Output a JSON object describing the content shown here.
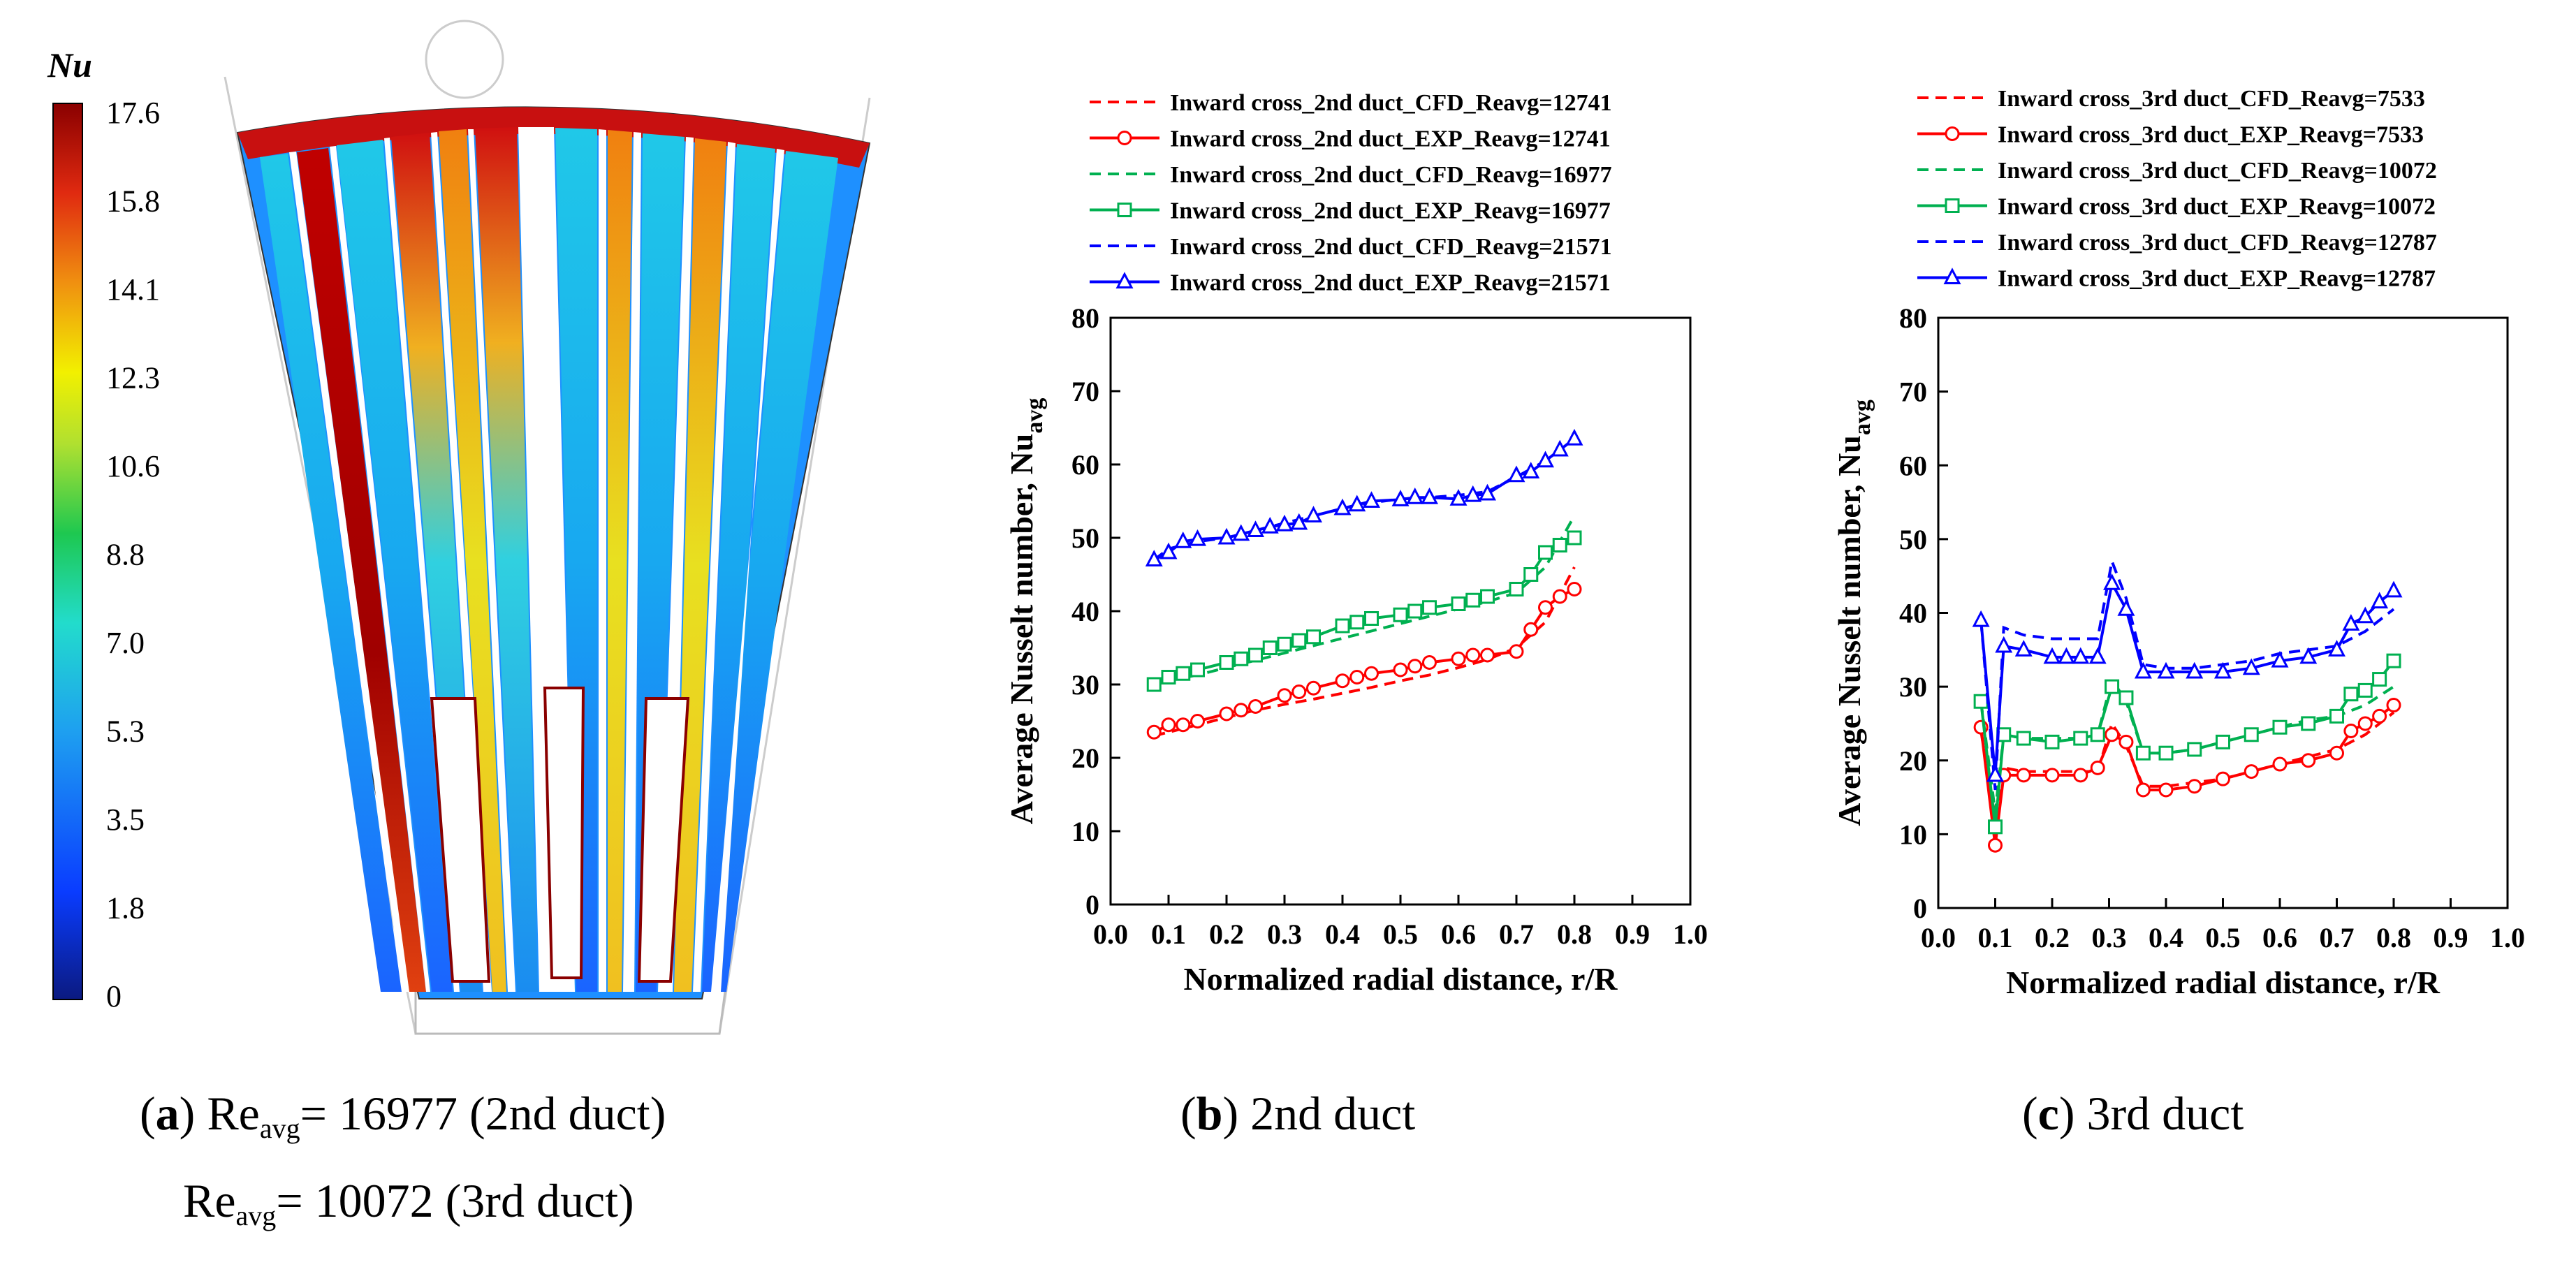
{
  "contour": {
    "colorbar_title": "Nu",
    "ticks": [
      "17.6",
      "15.8",
      "14.1",
      "12.3",
      "10.6",
      "8.8",
      "7.0",
      "5.3",
      "3.5",
      "1.8",
      "0"
    ]
  },
  "captions": {
    "a": {
      "letter": "a",
      "re_text": "Re",
      "sub": "avg",
      "line1_rest": "= 16977 (2nd duct)",
      "line2_rest": "= 10072 (3rd duct)"
    },
    "b": {
      "letter": "b",
      "text": "2nd duct"
    },
    "c": {
      "letter": "c",
      "text": "3rd duct"
    }
  },
  "chart_data": [
    {
      "type": "line",
      "title": "2nd duct",
      "xlabel": "Normalized radial distance, r/R",
      "ylabel": "Average Nusselt number, Nu",
      "ylabel_sub": "avg",
      "xlim": [
        0.0,
        1.0
      ],
      "ylim": [
        0,
        80
      ],
      "xticks": [
        "0.0",
        "0.1",
        "0.2",
        "0.3",
        "0.4",
        "0.5",
        "0.6",
        "0.7",
        "0.8",
        "0.9",
        "1.0"
      ],
      "yticks": [
        "0",
        "10",
        "20",
        "30",
        "40",
        "50",
        "60",
        "70",
        "80"
      ],
      "series": [
        {
          "name": "Inward cross_2nd duct_CFD_Reavg=12741",
          "color": "#ff0000",
          "dash": true,
          "marker": "none",
          "x": [
            0.075,
            0.1,
            0.15,
            0.2,
            0.25,
            0.3,
            0.35,
            0.4,
            0.45,
            0.5,
            0.55,
            0.6,
            0.65,
            0.7,
            0.75,
            0.8
          ],
          "y": [
            23.0,
            23.5,
            24.5,
            25.5,
            26.5,
            27.3,
            28.0,
            28.8,
            29.6,
            30.5,
            31.3,
            32.3,
            33.4,
            35.0,
            38.5,
            46.0
          ]
        },
        {
          "name": "Inward cross_2nd duct_EXP_Reavg=12741",
          "color": "#ff0000",
          "dash": false,
          "marker": "circle",
          "x": [
            0.075,
            0.1,
            0.125,
            0.15,
            0.2,
            0.225,
            0.25,
            0.3,
            0.325,
            0.35,
            0.4,
            0.425,
            0.45,
            0.5,
            0.525,
            0.55,
            0.6,
            0.625,
            0.65,
            0.7,
            0.725,
            0.75,
            0.775,
            0.8
          ],
          "y": [
            23.5,
            24.5,
            24.5,
            25.0,
            26.0,
            26.5,
            27.0,
            28.5,
            29.0,
            29.5,
            30.5,
            31.0,
            31.5,
            32.0,
            32.5,
            33.0,
            33.5,
            34.0,
            34.0,
            34.5,
            37.5,
            40.5,
            42.0,
            43.0
          ]
        },
        {
          "name": "Inward cross_2nd duct_CFD_Reavg=16977",
          "color": "#00b050",
          "dash": true,
          "marker": "none",
          "x": [
            0.075,
            0.1,
            0.15,
            0.2,
            0.25,
            0.3,
            0.35,
            0.4,
            0.45,
            0.5,
            0.55,
            0.6,
            0.65,
            0.7,
            0.75,
            0.8
          ],
          "y": [
            30.0,
            30.5,
            31.3,
            32.3,
            33.3,
            34.3,
            35.3,
            36.3,
            37.3,
            38.3,
            39.3,
            40.3,
            41.3,
            42.5,
            46.0,
            53.0
          ]
        },
        {
          "name": "Inward cross_2nd duct_EXP_Reavg=16977",
          "color": "#00b050",
          "dash": false,
          "marker": "square",
          "x": [
            0.075,
            0.1,
            0.125,
            0.15,
            0.2,
            0.225,
            0.25,
            0.275,
            0.3,
            0.325,
            0.35,
            0.4,
            0.425,
            0.45,
            0.5,
            0.525,
            0.55,
            0.6,
            0.625,
            0.65,
            0.7,
            0.725,
            0.75,
            0.775,
            0.8
          ],
          "y": [
            30.0,
            31.0,
            31.5,
            32.0,
            33.0,
            33.5,
            34.0,
            35.0,
            35.5,
            36.0,
            36.5,
            38.0,
            38.5,
            39.0,
            39.5,
            40.0,
            40.5,
            41.0,
            41.5,
            42.0,
            43.0,
            45.0,
            48.0,
            49.0,
            50.0
          ]
        },
        {
          "name": "Inward cross_2nd duct_CFD_Reavg=21571",
          "color": "#0000ff",
          "dash": true,
          "marker": "none",
          "x": [
            0.075,
            0.1,
            0.15,
            0.2,
            0.25,
            0.3,
            0.35,
            0.4,
            0.45,
            0.5,
            0.55,
            0.6,
            0.65,
            0.7,
            0.75,
            0.8
          ],
          "y": [
            47.0,
            48.5,
            49.5,
            50.0,
            51.0,
            52.0,
            53.0,
            54.0,
            54.8,
            55.3,
            55.5,
            55.8,
            56.3,
            58.3,
            60.5,
            63.5
          ]
        },
        {
          "name": "Inward cross_2nd duct_EXP_Reavg=21571",
          "color": "#0000ff",
          "dash": false,
          "marker": "triangle",
          "x": [
            0.075,
            0.1,
            0.125,
            0.15,
            0.2,
            0.225,
            0.25,
            0.275,
            0.3,
            0.325,
            0.35,
            0.4,
            0.425,
            0.45,
            0.5,
            0.525,
            0.55,
            0.6,
            0.625,
            0.65,
            0.7,
            0.725,
            0.75,
            0.775,
            0.8
          ],
          "y": [
            47.0,
            48.0,
            49.5,
            49.8,
            50.0,
            50.5,
            51.0,
            51.5,
            51.8,
            52.0,
            53.0,
            54.0,
            54.5,
            55.0,
            55.2,
            55.5,
            55.5,
            55.3,
            55.8,
            56.0,
            58.5,
            59.0,
            60.5,
            62.0,
            63.5
          ]
        }
      ]
    },
    {
      "type": "line",
      "title": "3rd duct",
      "xlabel": "Normalized radial distance, r/R",
      "ylabel": "Average Nusselt number, Nu",
      "ylabel_sub": "avg",
      "xlim": [
        0.0,
        1.0
      ],
      "ylim": [
        0,
        80
      ],
      "xticks": [
        "0.0",
        "0.1",
        "0.2",
        "0.3",
        "0.4",
        "0.5",
        "0.6",
        "0.7",
        "0.8",
        "0.9",
        "1.0"
      ],
      "yticks": [
        "0",
        "10",
        "20",
        "30",
        "40",
        "50",
        "60",
        "70",
        "80"
      ],
      "series": [
        {
          "name": "Inward cross_3rd duct_CFD_Reavg=7533",
          "color": "#ff0000",
          "dash": true,
          "marker": "none",
          "x": [
            0.075,
            0.1,
            0.115,
            0.15,
            0.2,
            0.25,
            0.28,
            0.305,
            0.33,
            0.36,
            0.4,
            0.45,
            0.5,
            0.55,
            0.6,
            0.65,
            0.7,
            0.75,
            0.8
          ],
          "y": [
            24.0,
            12.0,
            19.0,
            18.5,
            18.5,
            18.5,
            18.5,
            25.0,
            22.0,
            16.5,
            16.5,
            17.0,
            17.5,
            18.5,
            19.5,
            20.5,
            21.5,
            23.5,
            26.5
          ]
        },
        {
          "name": "Inward cross_3rd duct_EXP_Reavg=7533",
          "color": "#ff0000",
          "dash": false,
          "marker": "circle",
          "x": [
            0.075,
            0.1,
            0.115,
            0.15,
            0.2,
            0.25,
            0.28,
            0.305,
            0.33,
            0.36,
            0.4,
            0.45,
            0.5,
            0.55,
            0.6,
            0.65,
            0.7,
            0.725,
            0.75,
            0.775,
            0.8
          ],
          "y": [
            24.5,
            8.5,
            18.0,
            18.0,
            18.0,
            18.0,
            19.0,
            23.5,
            22.5,
            16.0,
            16.0,
            16.5,
            17.5,
            18.5,
            19.5,
            20.0,
            21.0,
            24.0,
            25.0,
            26.0,
            27.5
          ]
        },
        {
          "name": "Inward cross_3rd duct_CFD_Reavg=10072",
          "color": "#00b050",
          "dash": true,
          "marker": "none",
          "x": [
            0.075,
            0.1,
            0.115,
            0.15,
            0.2,
            0.25,
            0.28,
            0.305,
            0.33,
            0.36,
            0.4,
            0.45,
            0.5,
            0.55,
            0.6,
            0.65,
            0.7,
            0.75,
            0.8
          ],
          "y": [
            28.0,
            13.0,
            23.5,
            23.0,
            23.0,
            23.0,
            23.5,
            31.0,
            28.0,
            21.0,
            21.0,
            21.5,
            22.5,
            23.5,
            24.5,
            25.5,
            26.0,
            27.5,
            30.0
          ]
        },
        {
          "name": "Inward cross_3rd duct_EXP_Reavg=10072",
          "color": "#00b050",
          "dash": false,
          "marker": "square",
          "x": [
            0.075,
            0.1,
            0.115,
            0.15,
            0.2,
            0.25,
            0.28,
            0.305,
            0.33,
            0.36,
            0.4,
            0.45,
            0.5,
            0.55,
            0.6,
            0.65,
            0.7,
            0.725,
            0.75,
            0.775,
            0.8
          ],
          "y": [
            28.0,
            11.0,
            23.5,
            23.0,
            22.5,
            23.0,
            23.5,
            30.0,
            28.5,
            21.0,
            21.0,
            21.5,
            22.5,
            23.5,
            24.5,
            25.0,
            26.0,
            29.0,
            29.5,
            31.0,
            33.5
          ]
        },
        {
          "name": "Inward cross_3rd duct_CFD_Reavg=12787",
          "color": "#0000ff",
          "dash": true,
          "marker": "none",
          "x": [
            0.075,
            0.1,
            0.115,
            0.15,
            0.2,
            0.25,
            0.28,
            0.305,
            0.33,
            0.36,
            0.4,
            0.45,
            0.5,
            0.55,
            0.6,
            0.65,
            0.7,
            0.75,
            0.8
          ],
          "y": [
            39.0,
            16.0,
            38.0,
            37.0,
            36.5,
            36.5,
            36.5,
            47.0,
            42.0,
            33.0,
            32.5,
            32.5,
            33.0,
            33.5,
            34.5,
            35.0,
            35.5,
            37.5,
            40.5
          ]
        },
        {
          "name": "Inward cross_3rd duct_EXP_Reavg=12787",
          "color": "#0000ff",
          "dash": false,
          "marker": "triangle",
          "x": [
            0.075,
            0.1,
            0.115,
            0.15,
            0.2,
            0.225,
            0.25,
            0.28,
            0.305,
            0.33,
            0.36,
            0.4,
            0.45,
            0.5,
            0.55,
            0.6,
            0.65,
            0.7,
            0.725,
            0.75,
            0.775,
            0.8
          ],
          "y": [
            39.0,
            18.0,
            35.5,
            35.0,
            34.0,
            34.0,
            34.0,
            34.0,
            44.0,
            40.5,
            32.0,
            32.0,
            32.0,
            32.0,
            32.5,
            33.5,
            34.0,
            35.0,
            38.5,
            39.5,
            41.5,
            43.0
          ]
        }
      ]
    }
  ]
}
